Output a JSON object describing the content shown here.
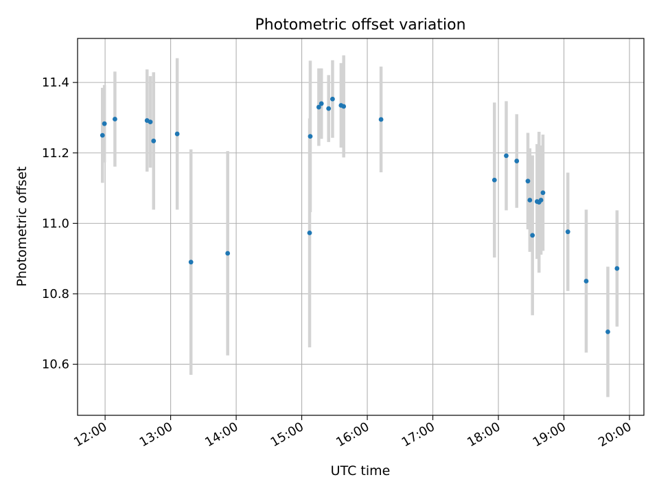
{
  "chart_data": {
    "type": "scatter",
    "title": "Photometric offset variation",
    "xlabel": "UTC time",
    "ylabel": "Photometric offset",
    "grid": true,
    "legend": "none",
    "xlim": [
      11.58,
      20.22
    ],
    "ylim": [
      10.455,
      11.525
    ],
    "x_ticks": [
      {
        "value": 12,
        "label": "12:00"
      },
      {
        "value": 13,
        "label": "13:00"
      },
      {
        "value": 14,
        "label": "14:00"
      },
      {
        "value": 15,
        "label": "15:00"
      },
      {
        "value": 16,
        "label": "16:00"
      },
      {
        "value": 17,
        "label": "17:00"
      },
      {
        "value": 18,
        "label": "18:00"
      },
      {
        "value": 19,
        "label": "19:00"
      },
      {
        "value": 20,
        "label": "20:00"
      }
    ],
    "y_ticks": [
      {
        "value": 10.6,
        "label": "10.6"
      },
      {
        "value": 10.8,
        "label": "10.8"
      },
      {
        "value": 11.0,
        "label": "11.0"
      },
      {
        "value": 11.2,
        "label": "11.2"
      },
      {
        "value": 11.4,
        "label": "11.4"
      }
    ],
    "series": [
      {
        "name": "offset",
        "marker_color": "#1f77b4",
        "errorbar_color": "#d3d3d3",
        "points": [
          {
            "x": 11.96,
            "y": 11.25,
            "err": 0.135
          },
          {
            "x": 11.99,
            "y": 11.283,
            "err": 0.11
          },
          {
            "x": 12.15,
            "y": 11.296,
            "err": 0.135
          },
          {
            "x": 12.64,
            "y": 11.292,
            "err": 0.145
          },
          {
            "x": 12.69,
            "y": 11.288,
            "err": 0.13
          },
          {
            "x": 12.74,
            "y": 11.234,
            "err": 0.195
          },
          {
            "x": 13.1,
            "y": 11.254,
            "err": 0.215
          },
          {
            "x": 13.31,
            "y": 10.89,
            "err": 0.32
          },
          {
            "x": 13.87,
            "y": 10.915,
            "err": 0.29
          },
          {
            "x": 15.12,
            "y": 10.973,
            "err": 0.325
          },
          {
            "x": 15.13,
            "y": 11.247,
            "err": 0.215
          },
          {
            "x": 15.26,
            "y": 11.33,
            "err": 0.11
          },
          {
            "x": 15.3,
            "y": 11.34,
            "err": 0.1
          },
          {
            "x": 15.41,
            "y": 11.326,
            "err": 0.095
          },
          {
            "x": 15.47,
            "y": 11.353,
            "err": 0.11
          },
          {
            "x": 15.6,
            "y": 11.335,
            "err": 0.12
          },
          {
            "x": 15.64,
            "y": 11.332,
            "err": 0.145
          },
          {
            "x": 16.21,
            "y": 11.295,
            "err": 0.15
          },
          {
            "x": 17.94,
            "y": 11.123,
            "err": 0.22
          },
          {
            "x": 18.12,
            "y": 11.192,
            "err": 0.155
          },
          {
            "x": 18.28,
            "y": 11.177,
            "err": 0.133
          },
          {
            "x": 18.45,
            "y": 11.12,
            "err": 0.137
          },
          {
            "x": 18.48,
            "y": 11.066,
            "err": 0.147
          },
          {
            "x": 18.52,
            "y": 10.966,
            "err": 0.227
          },
          {
            "x": 18.59,
            "y": 11.062,
            "err": 0.163
          },
          {
            "x": 18.62,
            "y": 11.06,
            "err": 0.2
          },
          {
            "x": 18.65,
            "y": 11.066,
            "err": 0.155
          },
          {
            "x": 18.68,
            "y": 11.087,
            "err": 0.165
          },
          {
            "x": 19.06,
            "y": 10.976,
            "err": 0.168
          },
          {
            "x": 19.34,
            "y": 10.836,
            "err": 0.203
          },
          {
            "x": 19.67,
            "y": 10.692,
            "err": 0.185
          },
          {
            "x": 19.81,
            "y": 10.872,
            "err": 0.165
          }
        ]
      }
    ]
  }
}
